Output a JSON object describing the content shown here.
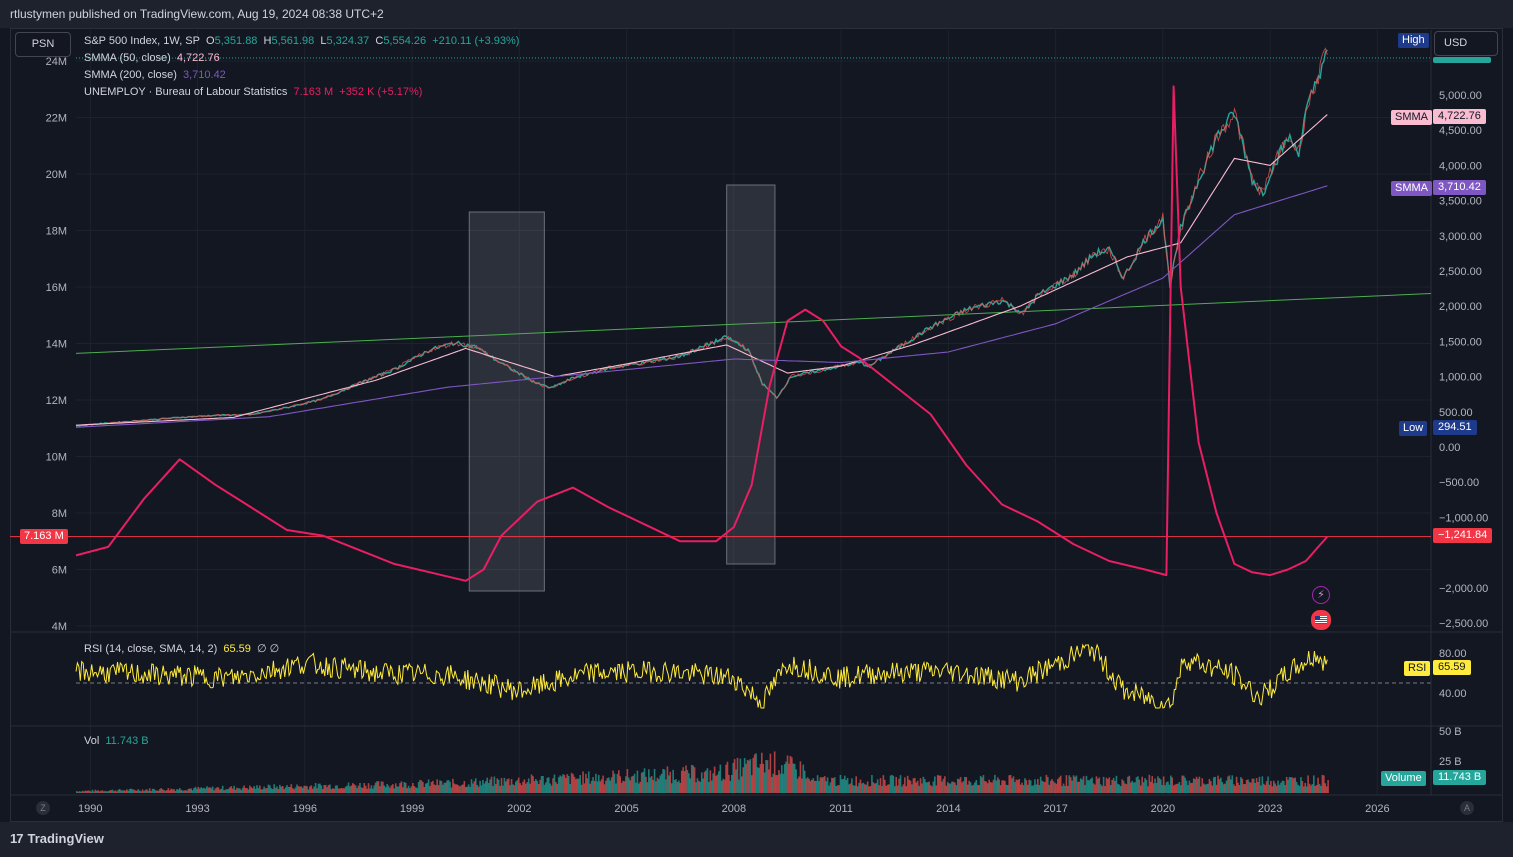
{
  "header": {
    "published": "rtlustymen published on TradingView.com, Aug 19, 2024 08:38 UTC+2"
  },
  "buttons": {
    "symbol": "PSN",
    "currency": "USD"
  },
  "footer": {
    "brand": "TradingView"
  },
  "legend": {
    "main": {
      "name": "S&P 500 Index, 1W, SP",
      "o_label": "O",
      "o": "5,351.88",
      "h_label": "H",
      "h": "5,561.98",
      "l_label": "L",
      "l": "5,324.37",
      "c_label": "C",
      "c": "5,554.26",
      "change": "+210.11 (+3.93%)"
    },
    "smma50": {
      "label": "SMMA (50, close)",
      "value": "4,722.76"
    },
    "smma200": {
      "label": "SMMA (200, close)",
      "value": "3,710.42"
    },
    "unemploy": {
      "label": "UNEMPLOY · Bureau of Labour Statistics",
      "value": "7.163 M",
      "change": "+352 K (+5.17%)"
    },
    "rsi": {
      "label": "RSI (14, close, SMA, 14, 2)",
      "value": "65.59",
      "extra": "∅ ∅"
    },
    "vol": {
      "label": "Vol",
      "value": "11.743 B"
    }
  },
  "tags": {
    "high": "High",
    "smma_a_label": "SMMA",
    "smma_a_value": "4,722.76",
    "smma_b_label": "SMMA",
    "smma_b_value": "3,710.42",
    "low_label": "Low",
    "low_value": "294.51",
    "unemploy_value": "7.163 M",
    "hline_value": "−1,241.84",
    "rsi_label": "RSI",
    "rsi_value": "65.59",
    "volume_label": "Volume",
    "volume_value": "11.743 B"
  },
  "icons": {
    "flash": "flash-icon",
    "flag": "us-flag-icon",
    "zoom_left": "Z",
    "auto": "A"
  },
  "colors": {
    "background": "#131722",
    "spx_up": "#26a69a",
    "spx_down": "#ef5350",
    "smma50": "#f8bbd0",
    "smma200": "#7e57c2",
    "unemploy": "#e91e63",
    "trendline": "#4caf50",
    "rsi": "#ffeb3b",
    "hline": "#f23645"
  },
  "chart_data": {
    "type": "line",
    "title": "S&P 500 Index, 1W, SP",
    "x_ticks": [
      "1990",
      "1993",
      "1996",
      "1999",
      "2002",
      "2005",
      "2008",
      "2011",
      "2014",
      "2017",
      "2020",
      "2023",
      "2026"
    ],
    "left_axis": {
      "ticks": [
        "4M",
        "6M",
        "8M",
        "10M",
        "12M",
        "14M",
        "16M",
        "18M",
        "20M",
        "22M",
        "24M"
      ],
      "ylim": [
        4000000,
        24500000
      ]
    },
    "right_axis": {
      "ticks": [
        "5,000.00",
        "4,500.00",
        "4,000.00",
        "3,500.00",
        "3,000.00",
        "2,500.00",
        "2,000.00",
        "1,500.00",
        "1,000.00",
        "500.00",
        "0.00",
        "−500.00",
        "−1,000.00",
        "−2,000.00",
        "−2,500.00"
      ],
      "ylim": [
        -2500,
        5500
      ]
    },
    "rsi_axis": {
      "ticks": [
        "80.00",
        "40.00"
      ]
    },
    "vol_axis": {
      "ticks": [
        "50 B",
        "25 B"
      ]
    },
    "series": [
      {
        "name": "S&P 500 Index",
        "points": [
          [
            1989.6,
            300
          ],
          [
            1990.5,
            340
          ],
          [
            1991.5,
            380
          ],
          [
            1992.5,
            420
          ],
          [
            1993.5,
            450
          ],
          [
            1994.5,
            460
          ],
          [
            1995.5,
            560
          ],
          [
            1996.5,
            680
          ],
          [
            1997.5,
            900
          ],
          [
            1998.5,
            1100
          ],
          [
            1999.5,
            1380
          ],
          [
            2000.2,
            1480
          ],
          [
            2000.8,
            1420
          ],
          [
            2001.3,
            1250
          ],
          [
            2001.8,
            1100
          ],
          [
            2002.5,
            900
          ],
          [
            2002.9,
            840
          ],
          [
            2003.5,
            980
          ],
          [
            2004.5,
            1120
          ],
          [
            2005.5,
            1200
          ],
          [
            2006.5,
            1290
          ],
          [
            2007.5,
            1500
          ],
          [
            2007.8,
            1560
          ],
          [
            2008.4,
            1380
          ],
          [
            2008.8,
            900
          ],
          [
            2009.2,
            700
          ],
          [
            2009.6,
            1000
          ],
          [
            2010.5,
            1100
          ],
          [
            2011.5,
            1200
          ],
          [
            2011.8,
            1150
          ],
          [
            2012.5,
            1380
          ],
          [
            2013.5,
            1700
          ],
          [
            2014.5,
            1950
          ],
          [
            2015.5,
            2080
          ],
          [
            2016.1,
            1900
          ],
          [
            2016.5,
            2150
          ],
          [
            2017.5,
            2450
          ],
          [
            2018.1,
            2750
          ],
          [
            2018.5,
            2800
          ],
          [
            2018.9,
            2400
          ],
          [
            2019.5,
            2950
          ],
          [
            2020.0,
            3250
          ],
          [
            2020.2,
            2300
          ],
          [
            2020.5,
            3100
          ],
          [
            2021.0,
            3800
          ],
          [
            2021.5,
            4400
          ],
          [
            2022.0,
            4750
          ],
          [
            2022.5,
            3800
          ],
          [
            2022.8,
            3600
          ],
          [
            2023.0,
            3900
          ],
          [
            2023.5,
            4400
          ],
          [
            2023.8,
            4200
          ],
          [
            2024.0,
            4750
          ],
          [
            2024.3,
            5200
          ],
          [
            2024.5,
            5500
          ],
          [
            2024.6,
            5554
          ]
        ]
      },
      {
        "name": "SMMA (50, close)",
        "points": [
          [
            1989.6,
            310
          ],
          [
            1994,
            420
          ],
          [
            1998,
            950
          ],
          [
            2000.5,
            1400
          ],
          [
            2003,
            1000
          ],
          [
            2005,
            1180
          ],
          [
            2007.8,
            1450
          ],
          [
            2009.5,
            1050
          ],
          [
            2011,
            1150
          ],
          [
            2013,
            1450
          ],
          [
            2016,
            2000
          ],
          [
            2019,
            2700
          ],
          [
            2020.5,
            2900
          ],
          [
            2022,
            4100
          ],
          [
            2023,
            4000
          ],
          [
            2024.6,
            4722
          ]
        ]
      },
      {
        "name": "SMMA (200, close)",
        "points": [
          [
            1989.6,
            280
          ],
          [
            1995,
            430
          ],
          [
            2000,
            850
          ],
          [
            2004,
            1050
          ],
          [
            2008,
            1250
          ],
          [
            2011,
            1200
          ],
          [
            2014,
            1350
          ],
          [
            2017,
            1750
          ],
          [
            2020,
            2400
          ],
          [
            2022,
            3300
          ],
          [
            2024.6,
            3710
          ]
        ]
      },
      {
        "name": "UNEMPLOY",
        "points": [
          [
            1989.6,
            6.5
          ],
          [
            1990.5,
            6.8
          ],
          [
            1991.5,
            8.5
          ],
          [
            1992.5,
            9.9
          ],
          [
            1993.5,
            9.0
          ],
          [
            1994.5,
            8.2
          ],
          [
            1995.5,
            7.4
          ],
          [
            1996.5,
            7.2
          ],
          [
            1997.5,
            6.7
          ],
          [
            1998.5,
            6.2
          ],
          [
            1999.5,
            5.9
          ],
          [
            2000.5,
            5.6
          ],
          [
            2001.0,
            6.0
          ],
          [
            2001.5,
            7.2
          ],
          [
            2002.5,
            8.4
          ],
          [
            2003.5,
            8.9
          ],
          [
            2004.5,
            8.2
          ],
          [
            2005.5,
            7.6
          ],
          [
            2006.5,
            7.0
          ],
          [
            2007.5,
            7.0
          ],
          [
            2008.0,
            7.5
          ],
          [
            2008.5,
            9.0
          ],
          [
            2009.0,
            12.5
          ],
          [
            2009.5,
            14.8
          ],
          [
            2010.0,
            15.2
          ],
          [
            2010.5,
            14.8
          ],
          [
            2011.0,
            13.9
          ],
          [
            2011.5,
            13.5
          ],
          [
            2012.5,
            12.5
          ],
          [
            2013.5,
            11.5
          ],
          [
            2014.5,
            9.7
          ],
          [
            2015.5,
            8.3
          ],
          [
            2016.5,
            7.7
          ],
          [
            2017.5,
            6.9
          ],
          [
            2018.5,
            6.3
          ],
          [
            2019.5,
            6.0
          ],
          [
            2020.1,
            5.8
          ],
          [
            2020.3,
            23.1
          ],
          [
            2020.5,
            16.0
          ],
          [
            2021.0,
            10.5
          ],
          [
            2021.5,
            8.0
          ],
          [
            2022.0,
            6.2
          ],
          [
            2022.5,
            5.9
          ],
          [
            2023.0,
            5.8
          ],
          [
            2023.5,
            6.0
          ],
          [
            2024.0,
            6.3
          ],
          [
            2024.6,
            7.163
          ]
        ]
      },
      {
        "name": "RSI",
        "points": [
          [
            1989.6,
            62
          ],
          [
            1992,
            58
          ],
          [
            1994,
            55
          ],
          [
            1996,
            70
          ],
          [
            1998,
            60
          ],
          [
            2000,
            58
          ],
          [
            2002,
            42
          ],
          [
            2004,
            60
          ],
          [
            2006,
            62
          ],
          [
            2008,
            55
          ],
          [
            2008.8,
            30
          ],
          [
            2009.5,
            70
          ],
          [
            2011,
            55
          ],
          [
            2012,
            60
          ],
          [
            2014,
            62
          ],
          [
            2016,
            52
          ],
          [
            2018,
            86
          ],
          [
            2018.9,
            42
          ],
          [
            2020.2,
            28
          ],
          [
            2020.6,
            75
          ],
          [
            2022,
            58
          ],
          [
            2022.7,
            35
          ],
          [
            2023.5,
            60
          ],
          [
            2024.3,
            78
          ],
          [
            2024.6,
            65.59
          ]
        ]
      }
    ],
    "trendline": [
      [
        1989.6,
        1330
      ],
      [
        2027.5,
        2180
      ]
    ],
    "horizontal_line": {
      "value": 7.163
    },
    "shaded_regions": [
      [
        2000.6,
        2002.7
      ],
      [
        2007.8,
        2009.15
      ]
    ],
    "grid": true,
    "legend_position": "top-left"
  }
}
